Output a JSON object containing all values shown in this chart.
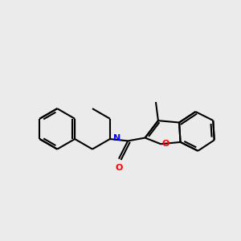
{
  "background_color": "#ebebeb",
  "bond_color": "#000000",
  "nitrogen_color": "#0000ff",
  "oxygen_color": "#ff0000",
  "line_width": 1.5,
  "figsize": [
    3.0,
    3.0
  ],
  "dpi": 100,
  "xlim": [
    0,
    10
  ],
  "ylim": [
    0,
    10
  ]
}
